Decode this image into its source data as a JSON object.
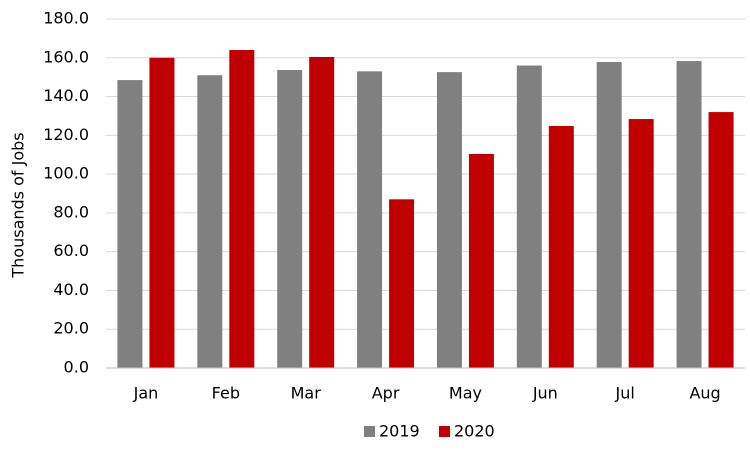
{
  "chart_data": {
    "type": "bar",
    "y_label": "Thousands of Jobs",
    "categories": [
      "Jan",
      "Feb",
      "Mar",
      "Apr",
      "May",
      "Jun",
      "Jul",
      "Aug"
    ],
    "series": [
      {
        "name": "2019",
        "color": "#808080",
        "values": [
          148.5,
          151,
          153.7,
          153,
          152.6,
          156,
          157.8,
          158.3
        ]
      },
      {
        "name": "2020",
        "color": "#c00000",
        "values": [
          160,
          164,
          160.4,
          87,
          110.4,
          124.8,
          128.4,
          132
        ]
      }
    ],
    "ylim": [
      0,
      180
    ],
    "yticks": [
      {
        "value": 0,
        "label": "0.0"
      },
      {
        "value": 20,
        "label": "20.0"
      },
      {
        "value": 40,
        "label": "40.0"
      },
      {
        "value": 60,
        "label": "60.0"
      },
      {
        "value": 80,
        "label": "80.0"
      },
      {
        "value": 100,
        "label": "100.0"
      },
      {
        "value": 120,
        "label": "120.0"
      },
      {
        "value": 140,
        "label": "140.0"
      },
      {
        "value": 160,
        "label": "160.0"
      },
      {
        "value": 180,
        "label": "180.0"
      }
    ],
    "grid": true,
    "legend": "bottom"
  }
}
